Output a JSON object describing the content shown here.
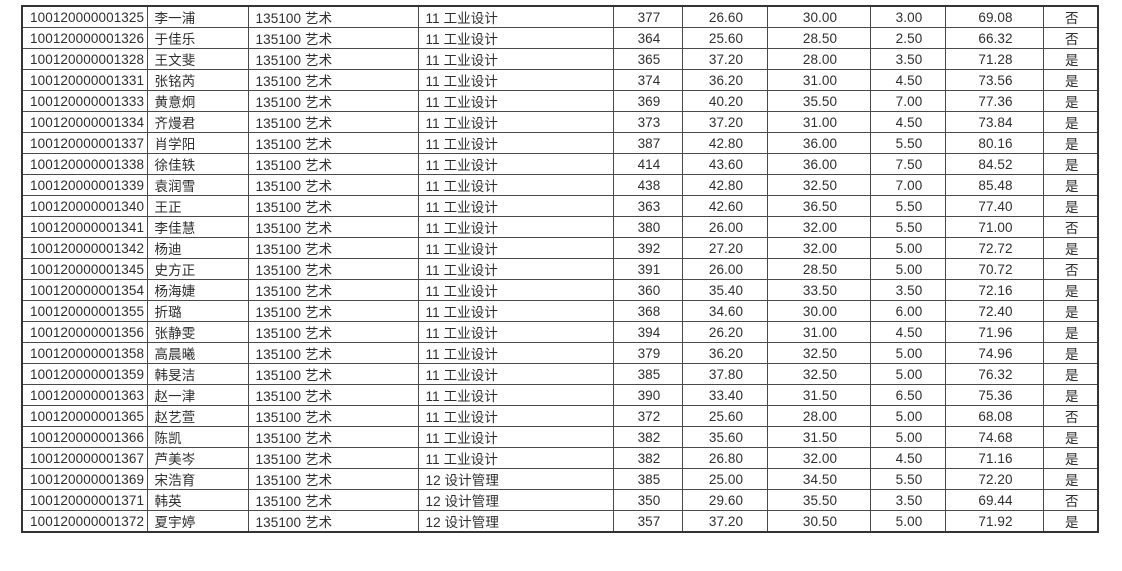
{
  "document": {
    "type": "admission-results-table-fragment",
    "language": "zh-CN"
  },
  "colors": {
    "background": "#ffffff",
    "text": "#2e2e2e",
    "grid_line": "#4a4a4a",
    "outer_border": "#333333"
  },
  "table": {
    "columns_visible_headers": [],
    "rows": [
      [
        "100120000001325",
        "李一浦",
        "135100 艺术",
        "11 工业设计",
        "377",
        "26.60",
        "30.00",
        "3.00",
        "69.08",
        "否"
      ],
      [
        "100120000001326",
        "于佳乐",
        "135100 艺术",
        "11 工业设计",
        "364",
        "25.60",
        "28.50",
        "2.50",
        "66.32",
        "否"
      ],
      [
        "100120000001328",
        "王文斐",
        "135100 艺术",
        "11 工业设计",
        "365",
        "37.20",
        "28.00",
        "3.50",
        "71.28",
        "是"
      ],
      [
        "100120000001331",
        "张铭芮",
        "135100 艺术",
        "11 工业设计",
        "374",
        "36.20",
        "31.00",
        "4.50",
        "73.56",
        "是"
      ],
      [
        "100120000001333",
        "黄意炯",
        "135100 艺术",
        "11 工业设计",
        "369",
        "40.20",
        "35.50",
        "7.00",
        "77.36",
        "是"
      ],
      [
        "100120000001334",
        "齐熳君",
        "135100 艺术",
        "11 工业设计",
        "373",
        "37.20",
        "31.00",
        "4.50",
        "73.84",
        "是"
      ],
      [
        "100120000001337",
        "肖学阳",
        "135100 艺术",
        "11 工业设计",
        "387",
        "42.80",
        "36.00",
        "5.50",
        "80.16",
        "是"
      ],
      [
        "100120000001338",
        "徐佳轶",
        "135100 艺术",
        "11 工业设计",
        "414",
        "43.60",
        "36.00",
        "7.50",
        "84.52",
        "是"
      ],
      [
        "100120000001339",
        "袁润雪",
        "135100 艺术",
        "11 工业设计",
        "438",
        "42.80",
        "32.50",
        "7.00",
        "85.48",
        "是"
      ],
      [
        "100120000001340",
        "王正",
        "135100 艺术",
        "11 工业设计",
        "363",
        "42.60",
        "36.50",
        "5.50",
        "77.40",
        "是"
      ],
      [
        "100120000001341",
        "李佳慧",
        "135100 艺术",
        "11 工业设计",
        "380",
        "26.00",
        "32.00",
        "5.50",
        "71.00",
        "否"
      ],
      [
        "100120000001342",
        "杨迪",
        "135100 艺术",
        "11 工业设计",
        "392",
        "27.20",
        "32.00",
        "5.00",
        "72.72",
        "是"
      ],
      [
        "100120000001345",
        "史方正",
        "135100 艺术",
        "11 工业设计",
        "391",
        "26.00",
        "28.50",
        "5.00",
        "70.72",
        "否"
      ],
      [
        "100120000001354",
        "杨海婕",
        "135100 艺术",
        "11 工业设计",
        "360",
        "35.40",
        "33.50",
        "3.50",
        "72.16",
        "是"
      ],
      [
        "100120000001355",
        "折璐",
        "135100 艺术",
        "11 工业设计",
        "368",
        "34.60",
        "30.00",
        "6.00",
        "72.40",
        "是"
      ],
      [
        "100120000001356",
        "张静雯",
        "135100 艺术",
        "11 工业设计",
        "394",
        "26.20",
        "31.00",
        "4.50",
        "71.96",
        "是"
      ],
      [
        "100120000001358",
        "高晨曦",
        "135100 艺术",
        "11 工业设计",
        "379",
        "36.20",
        "32.50",
        "5.00",
        "74.96",
        "是"
      ],
      [
        "100120000001359",
        "韩旻洁",
        "135100 艺术",
        "11 工业设计",
        "385",
        "37.80",
        "32.50",
        "5.00",
        "76.32",
        "是"
      ],
      [
        "100120000001363",
        "赵一津",
        "135100 艺术",
        "11 工业设计",
        "390",
        "33.40",
        "31.50",
        "6.50",
        "75.36",
        "是"
      ],
      [
        "100120000001365",
        "赵艺萱",
        "135100 艺术",
        "11 工业设计",
        "372",
        "25.60",
        "28.00",
        "5.00",
        "68.08",
        "否"
      ],
      [
        "100120000001366",
        "陈凯",
        "135100 艺术",
        "11 工业设计",
        "382",
        "35.60",
        "31.50",
        "5.00",
        "74.68",
        "是"
      ],
      [
        "100120000001367",
        "芦美岑",
        "135100 艺术",
        "11 工业设计",
        "382",
        "26.80",
        "32.00",
        "4.50",
        "71.16",
        "是"
      ],
      [
        "100120000001369",
        "宋浩育",
        "135100 艺术",
        "12 设计管理",
        "385",
        "25.00",
        "34.50",
        "5.50",
        "72.20",
        "是"
      ],
      [
        "100120000001371",
        "韩英",
        "135100 艺术",
        "12 设计管理",
        "350",
        "29.60",
        "35.50",
        "3.50",
        "69.44",
        "否"
      ],
      [
        "100120000001372",
        "夏宇婷",
        "135100 艺术",
        "12 设计管理",
        "357",
        "37.20",
        "30.50",
        "5.00",
        "71.92",
        "是"
      ]
    ]
  }
}
